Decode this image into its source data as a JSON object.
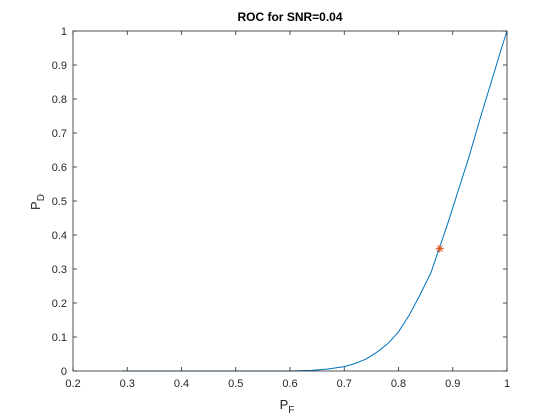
{
  "chart_data": {
    "type": "line",
    "title": "ROC for SNR=0.04",
    "xlabel": {
      "main": "P",
      "sub": "F"
    },
    "ylabel": {
      "main": "P",
      "sub": "D"
    },
    "xlim": [
      0.2,
      1
    ],
    "ylim": [
      0,
      1
    ],
    "xticks": [
      "0.2",
      "0.3",
      "0.4",
      "0.5",
      "0.6",
      "0.7",
      "0.8",
      "0.9",
      "1"
    ],
    "yticks": [
      "0",
      "0.1",
      "0.2",
      "0.3",
      "0.4",
      "0.5",
      "0.6",
      "0.7",
      "0.8",
      "0.9",
      "1"
    ],
    "grid": false,
    "series": [
      {
        "color": "#0072BD",
        "x": [
          0.29,
          0.35,
          0.45,
          0.55,
          0.6,
          0.64,
          0.67,
          0.7,
          0.72,
          0.74,
          0.76,
          0.78,
          0.8,
          0.82,
          0.84,
          0.86,
          0.875,
          0.89,
          0.91,
          0.93,
          0.95,
          0.97,
          0.99,
          1.0
        ],
        "y": [
          0.0,
          0.0,
          0.0,
          0.0,
          0.0,
          0.002,
          0.006,
          0.013,
          0.022,
          0.035,
          0.055,
          0.08,
          0.115,
          0.165,
          0.225,
          0.29,
          0.36,
          0.43,
          0.53,
          0.63,
          0.74,
          0.845,
          0.95,
          1.0
        ]
      }
    ],
    "marker": {
      "x": 0.876,
      "y": 0.36,
      "symbol": "asterisk",
      "color": "#D95319"
    }
  }
}
